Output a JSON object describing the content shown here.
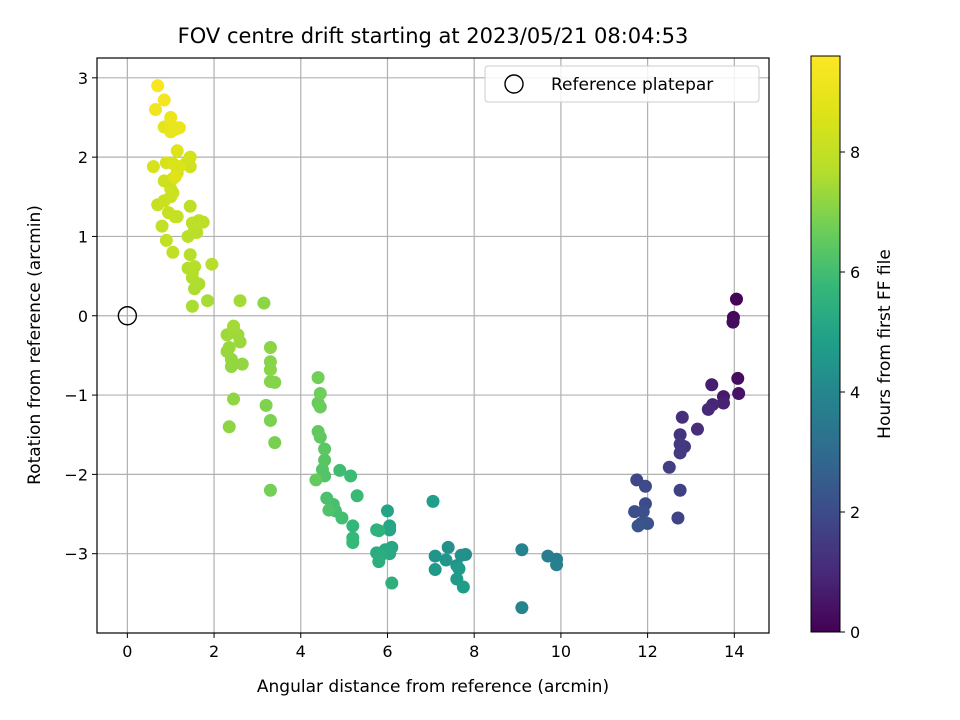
{
  "chart_data": {
    "type": "scatter",
    "title": "FOV centre drift starting at 2023/05/21 08:04:53",
    "xlabel": "Angular distance from reference (arcmin)",
    "ylabel": "Rotation from reference (arcmin)",
    "xlim": [
      -0.7,
      14.8
    ],
    "ylim": [
      -4.0,
      3.25
    ],
    "xticks": [
      0,
      2,
      4,
      6,
      8,
      10,
      12,
      14
    ],
    "xtick_labels": [
      "0",
      "2",
      "4",
      "6",
      "8",
      "10",
      "12",
      "14"
    ],
    "yticks": [
      -3,
      -2,
      -1,
      0,
      1,
      2,
      3
    ],
    "ytick_labels": [
      "−3",
      "−2",
      "−1",
      "0",
      "1",
      "2",
      "3"
    ],
    "grid": true,
    "legend": {
      "placement": "top-right",
      "entries": [
        "Reference platepar"
      ]
    },
    "reference_point": {
      "x": 0,
      "y": 0,
      "marker": "open-circle"
    },
    "colorbar": {
      "label": "Hours from first FF file",
      "range": [
        0,
        9.6
      ],
      "ticks": [
        0,
        2,
        4,
        6,
        8
      ],
      "tick_labels": [
        "0",
        "2",
        "4",
        "6",
        "8"
      ],
      "colormap": "viridis"
    },
    "points": [
      {
        "x": 14.05,
        "y": 0.21,
        "c": 0.05
      },
      {
        "x": 13.98,
        "y": -0.02,
        "c": 0.15
      },
      {
        "x": 13.97,
        "y": -0.08,
        "c": 0.25
      },
      {
        "x": 14.08,
        "y": -0.79,
        "c": 0.35
      },
      {
        "x": 14.1,
        "y": -0.98,
        "c": 0.45
      },
      {
        "x": 13.75,
        "y": -1.02,
        "c": 0.6
      },
      {
        "x": 13.48,
        "y": -0.87,
        "c": 0.7
      },
      {
        "x": 13.75,
        "y": -1.1,
        "c": 0.8
      },
      {
        "x": 13.5,
        "y": -1.12,
        "c": 0.9
      },
      {
        "x": 13.4,
        "y": -1.18,
        "c": 1.0
      },
      {
        "x": 13.15,
        "y": -1.43,
        "c": 1.1
      },
      {
        "x": 12.8,
        "y": -1.28,
        "c": 1.2
      },
      {
        "x": 12.75,
        "y": -1.5,
        "c": 1.3
      },
      {
        "x": 12.85,
        "y": -1.65,
        "c": 1.4
      },
      {
        "x": 12.75,
        "y": -1.62,
        "c": 1.45
      },
      {
        "x": 12.75,
        "y": -1.73,
        "c": 1.5
      },
      {
        "x": 12.5,
        "y": -1.91,
        "c": 1.6
      },
      {
        "x": 12.75,
        "y": -2.2,
        "c": 1.7
      },
      {
        "x": 12.7,
        "y": -2.55,
        "c": 1.75
      },
      {
        "x": 11.75,
        "y": -2.07,
        "c": 1.85
      },
      {
        "x": 11.95,
        "y": -2.15,
        "c": 1.95
      },
      {
        "x": 11.95,
        "y": -2.37,
        "c": 2.0
      },
      {
        "x": 11.9,
        "y": -2.47,
        "c": 2.1
      },
      {
        "x": 11.7,
        "y": -2.47,
        "c": 2.15
      },
      {
        "x": 11.85,
        "y": -2.62,
        "c": 2.2
      },
      {
        "x": 12.0,
        "y": -2.62,
        "c": 2.25
      },
      {
        "x": 11.78,
        "y": -2.65,
        "c": 2.3
      },
      {
        "x": 9.9,
        "y": -3.07,
        "c": 3.6
      },
      {
        "x": 9.7,
        "y": -3.03,
        "c": 3.7
      },
      {
        "x": 9.9,
        "y": -3.14,
        "c": 3.75
      },
      {
        "x": 9.1,
        "y": -2.95,
        "c": 3.85
      },
      {
        "x": 9.1,
        "y": -3.68,
        "c": 3.9
      },
      {
        "x": 7.8,
        "y": -3.01,
        "c": 4.3
      },
      {
        "x": 7.7,
        "y": -3.02,
        "c": 4.35
      },
      {
        "x": 7.4,
        "y": -2.92,
        "c": 4.4
      },
      {
        "x": 7.6,
        "y": -3.15,
        "c": 4.45
      },
      {
        "x": 7.1,
        "y": -3.03,
        "c": 4.5
      },
      {
        "x": 7.35,
        "y": -3.08,
        "c": 4.55
      },
      {
        "x": 7.1,
        "y": -3.2,
        "c": 4.6
      },
      {
        "x": 7.65,
        "y": -3.19,
        "c": 4.65
      },
      {
        "x": 7.6,
        "y": -3.32,
        "c": 4.7
      },
      {
        "x": 7.75,
        "y": -3.42,
        "c": 4.75
      },
      {
        "x": 7.05,
        "y": -2.34,
        "c": 4.8
      },
      {
        "x": 6.0,
        "y": -2.46,
        "c": 5.0
      },
      {
        "x": 6.05,
        "y": -2.65,
        "c": 5.05
      },
      {
        "x": 6.05,
        "y": -2.7,
        "c": 5.1
      },
      {
        "x": 6.1,
        "y": -2.92,
        "c": 5.15
      },
      {
        "x": 5.95,
        "y": -2.95,
        "c": 5.2
      },
      {
        "x": 6.05,
        "y": -3.0,
        "c": 5.25
      },
      {
        "x": 5.75,
        "y": -2.99,
        "c": 5.3
      },
      {
        "x": 5.85,
        "y": -3.02,
        "c": 5.35
      },
      {
        "x": 5.8,
        "y": -3.1,
        "c": 5.4
      },
      {
        "x": 6.1,
        "y": -3.37,
        "c": 5.45
      },
      {
        "x": 5.75,
        "y": -2.7,
        "c": 5.5
      },
      {
        "x": 5.8,
        "y": -2.71,
        "c": 5.55
      },
      {
        "x": 5.2,
        "y": -2.65,
        "c": 5.7
      },
      {
        "x": 5.2,
        "y": -2.8,
        "c": 5.75
      },
      {
        "x": 5.2,
        "y": -2.86,
        "c": 5.8
      },
      {
        "x": 5.3,
        "y": -2.27,
        "c": 5.85
      },
      {
        "x": 5.15,
        "y": -2.02,
        "c": 5.9
      },
      {
        "x": 4.9,
        "y": -1.95,
        "c": 5.95
      },
      {
        "x": 4.95,
        "y": -2.55,
        "c": 6.0
      },
      {
        "x": 4.8,
        "y": -2.46,
        "c": 6.05
      },
      {
        "x": 4.75,
        "y": -2.38,
        "c": 6.1
      },
      {
        "x": 4.6,
        "y": -2.3,
        "c": 6.15
      },
      {
        "x": 4.65,
        "y": -2.45,
        "c": 6.2
      },
      {
        "x": 4.55,
        "y": -2.02,
        "c": 6.25
      },
      {
        "x": 4.5,
        "y": -1.94,
        "c": 6.3
      },
      {
        "x": 4.55,
        "y": -1.82,
        "c": 6.35
      },
      {
        "x": 4.55,
        "y": -1.68,
        "c": 6.4
      },
      {
        "x": 4.45,
        "y": -1.53,
        "c": 6.45
      },
      {
        "x": 4.4,
        "y": -1.46,
        "c": 6.5
      },
      {
        "x": 4.35,
        "y": -2.07,
        "c": 6.55
      },
      {
        "x": 4.4,
        "y": -1.1,
        "c": 6.6
      },
      {
        "x": 4.45,
        "y": -1.15,
        "c": 6.65
      },
      {
        "x": 4.45,
        "y": -0.98,
        "c": 6.7
      },
      {
        "x": 4.4,
        "y": -0.78,
        "c": 6.75
      },
      {
        "x": 3.3,
        "y": -2.2,
        "c": 6.8
      },
      {
        "x": 3.4,
        "y": -1.6,
        "c": 6.85
      },
      {
        "x": 3.3,
        "y": -1.32,
        "c": 6.9
      },
      {
        "x": 3.2,
        "y": -1.13,
        "c": 6.95
      },
      {
        "x": 3.3,
        "y": -0.83,
        "c": 7.0
      },
      {
        "x": 3.4,
        "y": -0.84,
        "c": 7.02
      },
      {
        "x": 3.3,
        "y": -0.58,
        "c": 7.05
      },
      {
        "x": 3.3,
        "y": -0.68,
        "c": 7.08
      },
      {
        "x": 3.3,
        "y": -0.4,
        "c": 7.1
      },
      {
        "x": 3.15,
        "y": 0.16,
        "c": 7.12
      },
      {
        "x": 2.35,
        "y": -1.4,
        "c": 7.15
      },
      {
        "x": 2.45,
        "y": -1.05,
        "c": 7.18
      },
      {
        "x": 2.4,
        "y": -0.64,
        "c": 7.2
      },
      {
        "x": 2.65,
        "y": -0.61,
        "c": 7.22
      },
      {
        "x": 2.4,
        "y": -0.55,
        "c": 7.25
      },
      {
        "x": 2.3,
        "y": -0.45,
        "c": 7.27
      },
      {
        "x": 2.35,
        "y": -0.4,
        "c": 7.3
      },
      {
        "x": 2.6,
        "y": -0.33,
        "c": 7.32
      },
      {
        "x": 2.55,
        "y": -0.24,
        "c": 7.35
      },
      {
        "x": 2.3,
        "y": -0.24,
        "c": 7.37
      },
      {
        "x": 2.45,
        "y": -0.19,
        "c": 7.4
      },
      {
        "x": 2.45,
        "y": -0.13,
        "c": 7.42
      },
      {
        "x": 2.6,
        "y": 0.19,
        "c": 7.45
      },
      {
        "x": 1.85,
        "y": 0.19,
        "c": 7.5
      },
      {
        "x": 1.5,
        "y": 0.12,
        "c": 7.55
      },
      {
        "x": 1.55,
        "y": 0.34,
        "c": 7.58
      },
      {
        "x": 1.65,
        "y": 0.4,
        "c": 7.6
      },
      {
        "x": 1.5,
        "y": 0.48,
        "c": 7.62
      },
      {
        "x": 1.5,
        "y": 0.55,
        "c": 7.65
      },
      {
        "x": 1.4,
        "y": 0.6,
        "c": 7.67
      },
      {
        "x": 1.55,
        "y": 0.62,
        "c": 7.7
      },
      {
        "x": 1.45,
        "y": 0.77,
        "c": 7.72
      },
      {
        "x": 1.95,
        "y": 0.65,
        "c": 7.75
      },
      {
        "x": 1.4,
        "y": 1.0,
        "c": 7.78
      },
      {
        "x": 1.55,
        "y": 1.08,
        "c": 7.8
      },
      {
        "x": 1.6,
        "y": 1.05,
        "c": 7.82
      },
      {
        "x": 1.5,
        "y": 1.17,
        "c": 7.85
      },
      {
        "x": 1.65,
        "y": 1.2,
        "c": 7.87
      },
      {
        "x": 1.75,
        "y": 1.18,
        "c": 7.9
      },
      {
        "x": 1.45,
        "y": 1.38,
        "c": 7.92
      },
      {
        "x": 1.05,
        "y": 0.8,
        "c": 7.95
      },
      {
        "x": 0.9,
        "y": 0.95,
        "c": 7.98
      },
      {
        "x": 0.8,
        "y": 1.13,
        "c": 8.0
      },
      {
        "x": 1.1,
        "y": 1.25,
        "c": 8.05
      },
      {
        "x": 1.15,
        "y": 1.25,
        "c": 8.08
      },
      {
        "x": 0.95,
        "y": 1.3,
        "c": 8.1
      },
      {
        "x": 0.7,
        "y": 1.4,
        "c": 8.12
      },
      {
        "x": 0.85,
        "y": 1.45,
        "c": 8.15
      },
      {
        "x": 1.0,
        "y": 1.5,
        "c": 8.18
      },
      {
        "x": 1.05,
        "y": 1.55,
        "c": 8.2
      },
      {
        "x": 1.0,
        "y": 1.6,
        "c": 8.22
      },
      {
        "x": 0.85,
        "y": 1.7,
        "c": 8.25
      },
      {
        "x": 1.05,
        "y": 1.73,
        "c": 8.28
      },
      {
        "x": 1.15,
        "y": 1.8,
        "c": 8.3
      },
      {
        "x": 1.45,
        "y": 1.88,
        "c": 8.32
      },
      {
        "x": 1.35,
        "y": 1.92,
        "c": 8.35
      },
      {
        "x": 1.45,
        "y": 2.0,
        "c": 8.38
      },
      {
        "x": 0.6,
        "y": 1.88,
        "c": 8.45
      },
      {
        "x": 0.9,
        "y": 1.93,
        "c": 8.5
      },
      {
        "x": 1.05,
        "y": 1.92,
        "c": 8.55
      },
      {
        "x": 1.2,
        "y": 1.88,
        "c": 8.6
      },
      {
        "x": 1.15,
        "y": 2.08,
        "c": 8.7
      },
      {
        "x": 1.1,
        "y": 1.75,
        "c": 8.75
      },
      {
        "x": 0.85,
        "y": 2.38,
        "c": 8.85
      },
      {
        "x": 1.0,
        "y": 2.42,
        "c": 8.9
      },
      {
        "x": 1.1,
        "y": 2.35,
        "c": 8.95
      },
      {
        "x": 1.0,
        "y": 2.32,
        "c": 9.0
      },
      {
        "x": 1.2,
        "y": 2.37,
        "c": 9.05
      },
      {
        "x": 1.0,
        "y": 2.5,
        "c": 9.1
      },
      {
        "x": 0.65,
        "y": 2.6,
        "c": 9.2
      },
      {
        "x": 0.85,
        "y": 2.72,
        "c": 9.3
      },
      {
        "x": 0.7,
        "y": 2.9,
        "c": 9.45
      }
    ]
  }
}
